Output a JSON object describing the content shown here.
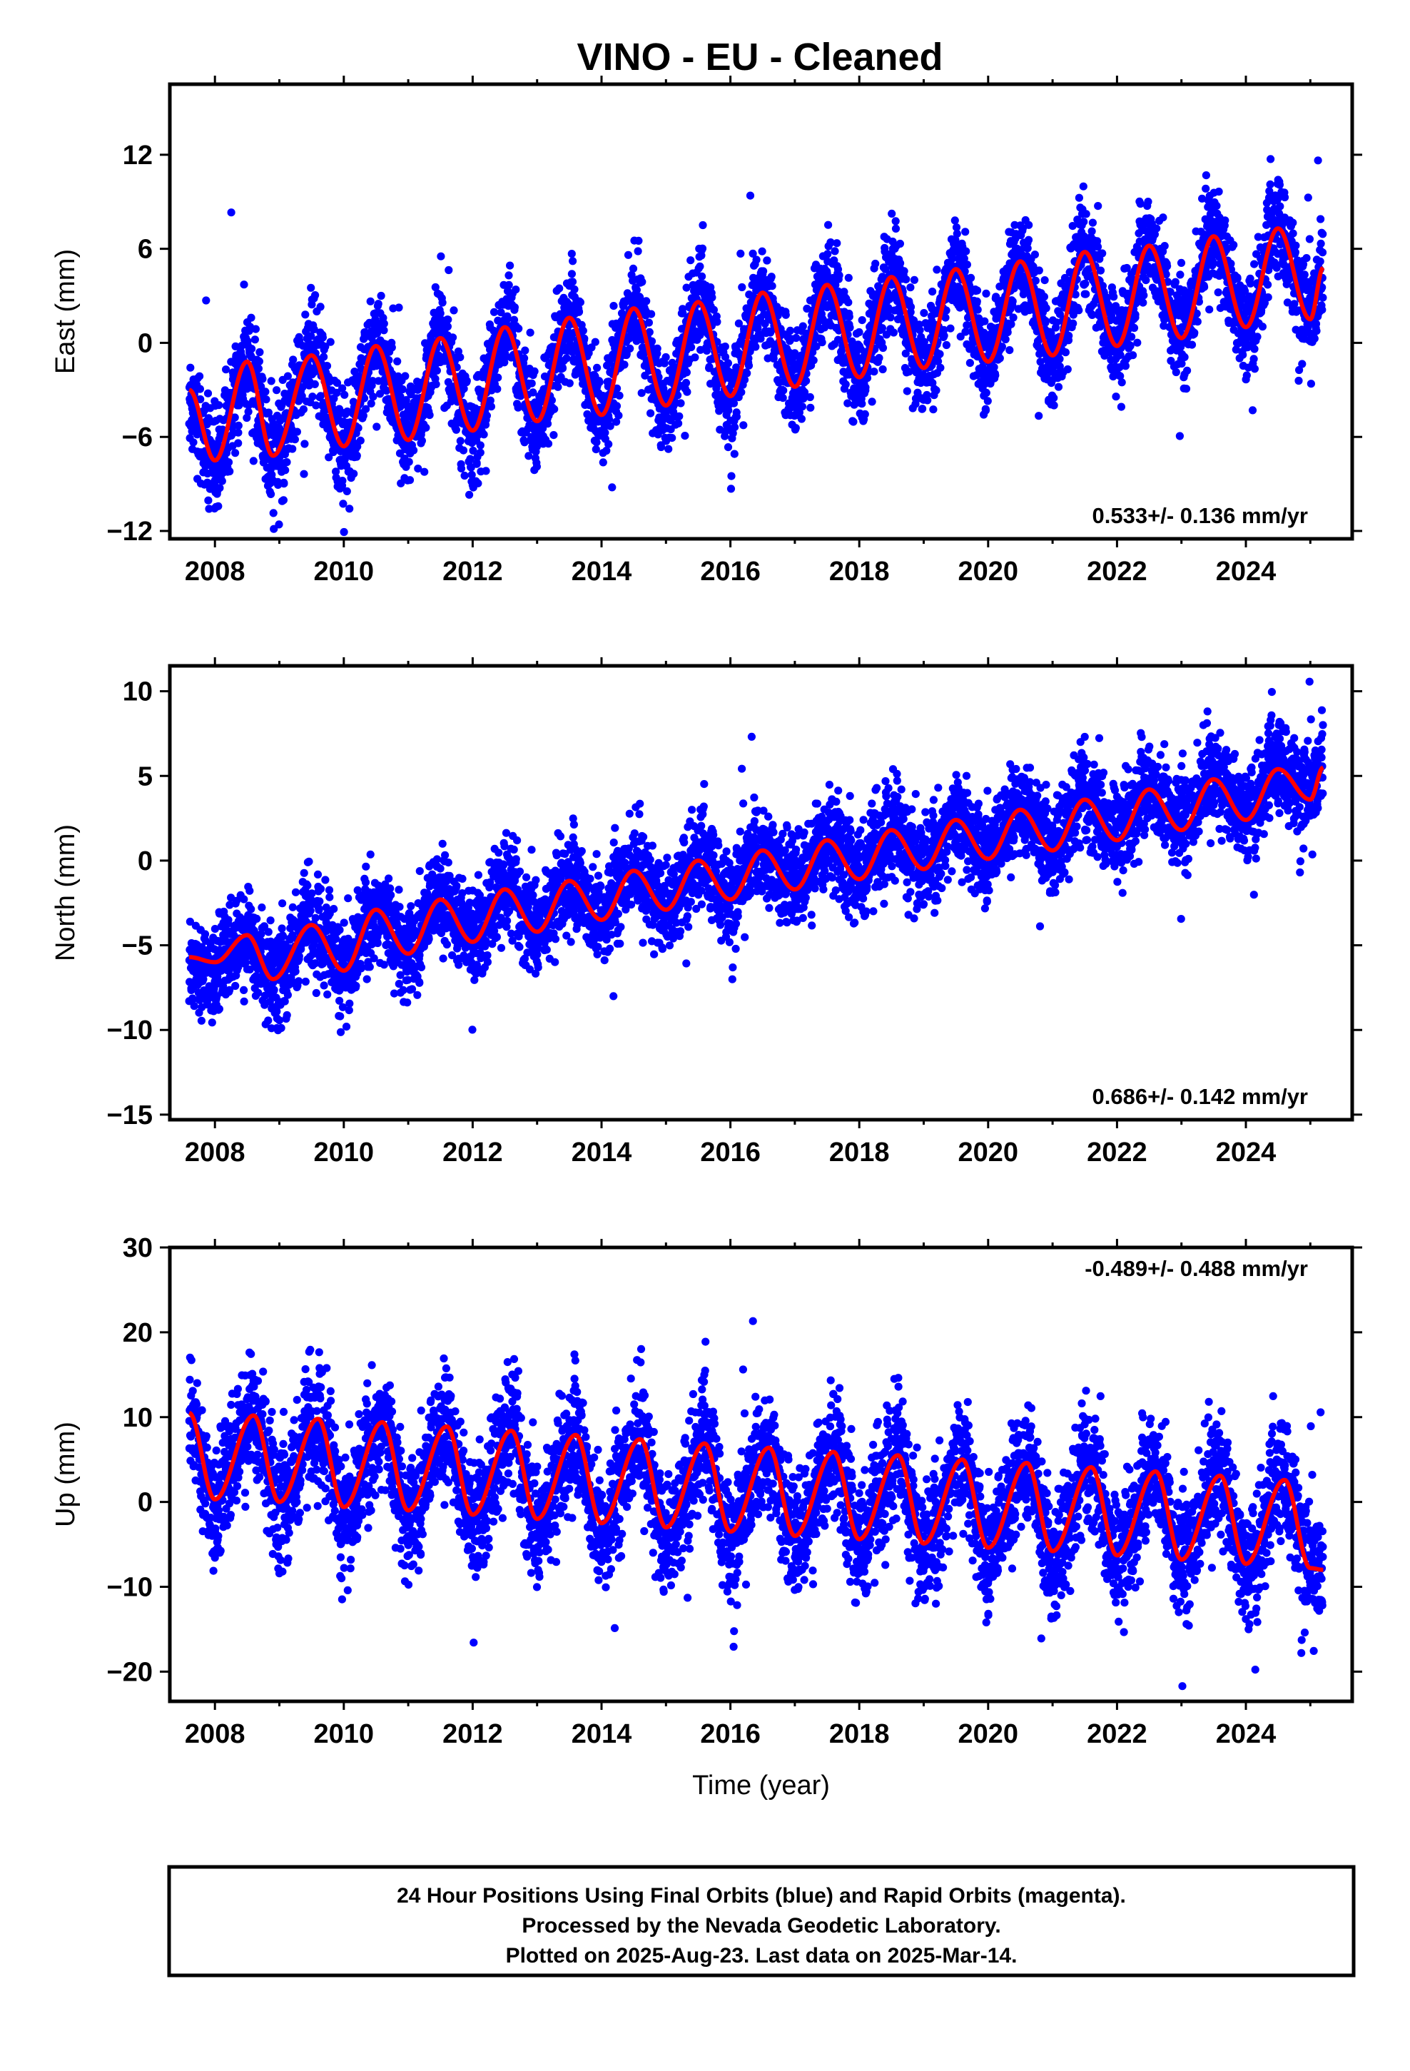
{
  "figure": {
    "title": "VINO  - EU - Cleaned",
    "colors": {
      "final": "#0000ff",
      "fit": "#ff0000",
      "frame": "#000000"
    }
  },
  "chart_data": [
    {
      "type": "scatter",
      "component": "east",
      "ylabel": "East (mm)",
      "xlabel": "",
      "xlim": [
        2007.3,
        2025.65
      ],
      "ylim": [
        -12.5,
        16.5
      ],
      "xticks": [
        2008,
        2010,
        2012,
        2014,
        2016,
        2018,
        2020,
        2022,
        2024
      ],
      "yticks": [
        -12,
        -6,
        0,
        6,
        12
      ],
      "rate_label": "0.533+/- 0.136 mm/yr",
      "rate_position": "bottom-right",
      "series": [
        {
          "role": "observations",
          "color": "#0000ff",
          "x": [
            2007.6,
            2008.0,
            2008.5,
            2008.9,
            2009.5,
            2010.0,
            2010.5,
            2011.0,
            2011.5,
            2012.0,
            2012.5,
            2013.0,
            2013.5,
            2014.0,
            2014.5,
            2015.0,
            2015.5,
            2016.0,
            2016.5,
            2017.0,
            2017.5,
            2018.0,
            2018.5,
            2019.0,
            2019.5,
            2020.0,
            2020.5,
            2021.0,
            2021.5,
            2022.0,
            2022.5,
            2023.0,
            2023.5,
            2024.0,
            2024.5,
            2025.0
          ],
          "y": [
            -5.5,
            -9.0,
            -1.0,
            -8.0,
            0.5,
            -7.0,
            0.0,
            -6.0,
            0.5,
            -6.0,
            1.5,
            -6.0,
            2.0,
            -5.0,
            3.0,
            -5.0,
            3.0,
            -4.5,
            3.5,
            -4.0,
            5.0,
            -3.0,
            4.5,
            -2.0,
            6.0,
            -1.5,
            6.5,
            -1.0,
            7.0,
            -0.5,
            7.0,
            0.5,
            8.0,
            0.5,
            8.0,
            1.5
          ]
        },
        {
          "role": "model-fit",
          "color": "#ff0000",
          "x": [
            2007.6,
            2008.0,
            2008.5,
            2008.9,
            2009.5,
            2010.0,
            2010.5,
            2011.0,
            2011.5,
            2012.0,
            2012.5,
            2013.0,
            2013.5,
            2014.0,
            2014.5,
            2015.0,
            2015.5,
            2016.0,
            2016.5,
            2017.0,
            2017.5,
            2018.0,
            2018.5,
            2019.0,
            2019.5,
            2020.0,
            2020.5,
            2021.0,
            2021.5,
            2022.0,
            2022.5,
            2023.0,
            2023.5,
            2024.0,
            2024.5,
            2025.0,
            2025.2
          ],
          "y": [
            -3.0,
            -7.5,
            -1.2,
            -7.2,
            -0.8,
            -6.6,
            -0.2,
            -6.2,
            0.3,
            -5.6,
            1.0,
            -5.0,
            1.6,
            -4.6,
            2.2,
            -4.0,
            2.6,
            -3.4,
            3.2,
            -2.8,
            3.7,
            -2.2,
            4.2,
            -1.6,
            4.7,
            -1.2,
            5.2,
            -0.8,
            5.8,
            -0.2,
            6.2,
            0.3,
            6.8,
            1.0,
            7.3,
            1.5,
            4.8
          ]
        }
      ]
    },
    {
      "type": "scatter",
      "component": "north",
      "ylabel": "North (mm)",
      "xlabel": "",
      "xlim": [
        2007.3,
        2025.65
      ],
      "ylim": [
        -15.3,
        11.5
      ],
      "xticks": [
        2008,
        2010,
        2012,
        2014,
        2016,
        2018,
        2020,
        2022,
        2024
      ],
      "yticks": [
        -15,
        -10,
        -5,
        0,
        5,
        10
      ],
      "rate_label": "0.686+/- 0.142 mm/yr",
      "rate_position": "bottom-right",
      "series": [
        {
          "role": "observations",
          "color": "#0000ff",
          "x": [
            2007.6,
            2008.0,
            2008.5,
            2009.0,
            2009.5,
            2010.0,
            2010.5,
            2011.0,
            2011.5,
            2012.0,
            2012.5,
            2013.0,
            2013.5,
            2014.0,
            2014.5,
            2015.0,
            2015.5,
            2016.0,
            2016.5,
            2017.0,
            2017.5,
            2018.0,
            2018.5,
            2019.0,
            2019.5,
            2020.0,
            2020.5,
            2021.0,
            2021.5,
            2022.0,
            2022.5,
            2023.0,
            2023.5,
            2024.0,
            2024.5,
            2025.0
          ],
          "y": [
            -7.5,
            -8.0,
            -4.0,
            -8.0,
            -2.5,
            -5.5,
            -2.0,
            -4.5,
            -1.5,
            -3.0,
            -1.0,
            -3.0,
            -0.5,
            -2.5,
            0.0,
            -2.0,
            0.5,
            -1.0,
            1.0,
            -0.5,
            2.0,
            0.0,
            2.5,
            0.5,
            3.0,
            1.5,
            4.0,
            2.0,
            4.5,
            3.0,
            5.0,
            3.5,
            6.0,
            4.5,
            6.5,
            5.0
          ]
        },
        {
          "role": "model-fit",
          "color": "#ff0000",
          "x": [
            2007.6,
            2008.0,
            2008.5,
            2008.9,
            2009.5,
            2010.0,
            2010.5,
            2011.0,
            2011.5,
            2012.0,
            2012.5,
            2013.0,
            2013.5,
            2014.0,
            2014.5,
            2015.0,
            2015.5,
            2016.0,
            2016.5,
            2017.0,
            2017.5,
            2018.0,
            2018.5,
            2019.0,
            2019.5,
            2020.0,
            2020.5,
            2021.0,
            2021.5,
            2022.0,
            2022.5,
            2023.0,
            2023.5,
            2024.0,
            2024.5,
            2025.0,
            2025.2
          ],
          "y": [
            -5.7,
            -6.0,
            -4.4,
            -7.0,
            -3.8,
            -6.5,
            -2.9,
            -5.5,
            -2.3,
            -4.8,
            -1.7,
            -4.2,
            -1.2,
            -3.5,
            -0.6,
            -2.9,
            0.0,
            -2.3,
            0.6,
            -1.7,
            1.2,
            -1.1,
            1.8,
            -0.5,
            2.4,
            0.1,
            3.0,
            0.6,
            3.6,
            1.2,
            4.2,
            1.8,
            4.8,
            2.4,
            5.4,
            3.6,
            5.5
          ]
        }
      ]
    },
    {
      "type": "scatter",
      "component": "up",
      "ylabel": "Up (mm)",
      "xlabel": "Time (year)",
      "xlim": [
        2007.3,
        2025.65
      ],
      "ylim": [
        -23.5,
        30.0
      ],
      "xticks": [
        2008,
        2010,
        2012,
        2014,
        2016,
        2018,
        2020,
        2022,
        2024
      ],
      "yticks": [
        -20,
        -10,
        0,
        10,
        20,
        30
      ],
      "rate_label": "-0.489+/- 0.488 mm/yr",
      "rate_position": "top-right",
      "series": [
        {
          "role": "observations",
          "color": "#0000ff",
          "x": [
            2007.6,
            2008.0,
            2008.6,
            2009.0,
            2009.6,
            2010.0,
            2010.6,
            2011.0,
            2011.6,
            2012.0,
            2012.6,
            2013.0,
            2013.6,
            2014.0,
            2014.6,
            2015.0,
            2015.6,
            2016.0,
            2016.6,
            2017.0,
            2017.6,
            2018.0,
            2018.6,
            2019.0,
            2019.6,
            2020.0,
            2020.6,
            2021.0,
            2021.6,
            2022.0,
            2022.6,
            2023.0,
            2023.6,
            2024.0,
            2024.6,
            2025.0
          ],
          "y": [
            12.0,
            -2.0,
            14.0,
            -4.0,
            11.0,
            -6.0,
            11.0,
            -5.0,
            10.0,
            -6.0,
            10.0,
            -7.0,
            9.0,
            -9.0,
            9.0,
            -10.0,
            8.0,
            -9.0,
            8.0,
            -9.0,
            9.0,
            -8.0,
            8.0,
            -9.0,
            8.0,
            -9.0,
            7.0,
            -10.0,
            8.0,
            -10.0,
            8.0,
            -10.0,
            7.0,
            -11.0,
            5.0,
            -10.0
          ]
        },
        {
          "role": "model-fit",
          "color": "#ff0000",
          "x": [
            2007.6,
            2008.0,
            2008.6,
            2009.0,
            2009.6,
            2010.0,
            2010.6,
            2011.0,
            2011.6,
            2012.0,
            2012.6,
            2013.0,
            2013.6,
            2014.0,
            2014.6,
            2015.0,
            2015.6,
            2016.0,
            2016.6,
            2017.0,
            2017.6,
            2018.0,
            2018.6,
            2019.0,
            2019.6,
            2020.0,
            2020.6,
            2021.0,
            2021.6,
            2022.0,
            2022.6,
            2023.0,
            2023.6,
            2024.0,
            2024.6,
            2025.0,
            2025.2
          ],
          "y": [
            10.5,
            0.3,
            10.2,
            0.0,
            9.8,
            -0.6,
            9.4,
            -1.0,
            8.9,
            -1.5,
            8.4,
            -2.0,
            7.9,
            -2.5,
            7.4,
            -3.0,
            6.9,
            -3.5,
            6.4,
            -4.0,
            5.9,
            -4.4,
            5.5,
            -4.9,
            5.0,
            -5.4,
            4.6,
            -5.8,
            4.1,
            -6.3,
            3.6,
            -6.8,
            3.1,
            -7.3,
            2.6,
            -7.8,
            -8.0
          ]
        }
      ]
    }
  ],
  "footer": {
    "lines": [
      "24 Hour Positions Using Final Orbits (blue) and Rapid Orbits (magenta).",
      "Processed by the Nevada Geodetic Laboratory.",
      "Plotted on 2025-Aug-23. Last data on 2025-Mar-14."
    ]
  }
}
